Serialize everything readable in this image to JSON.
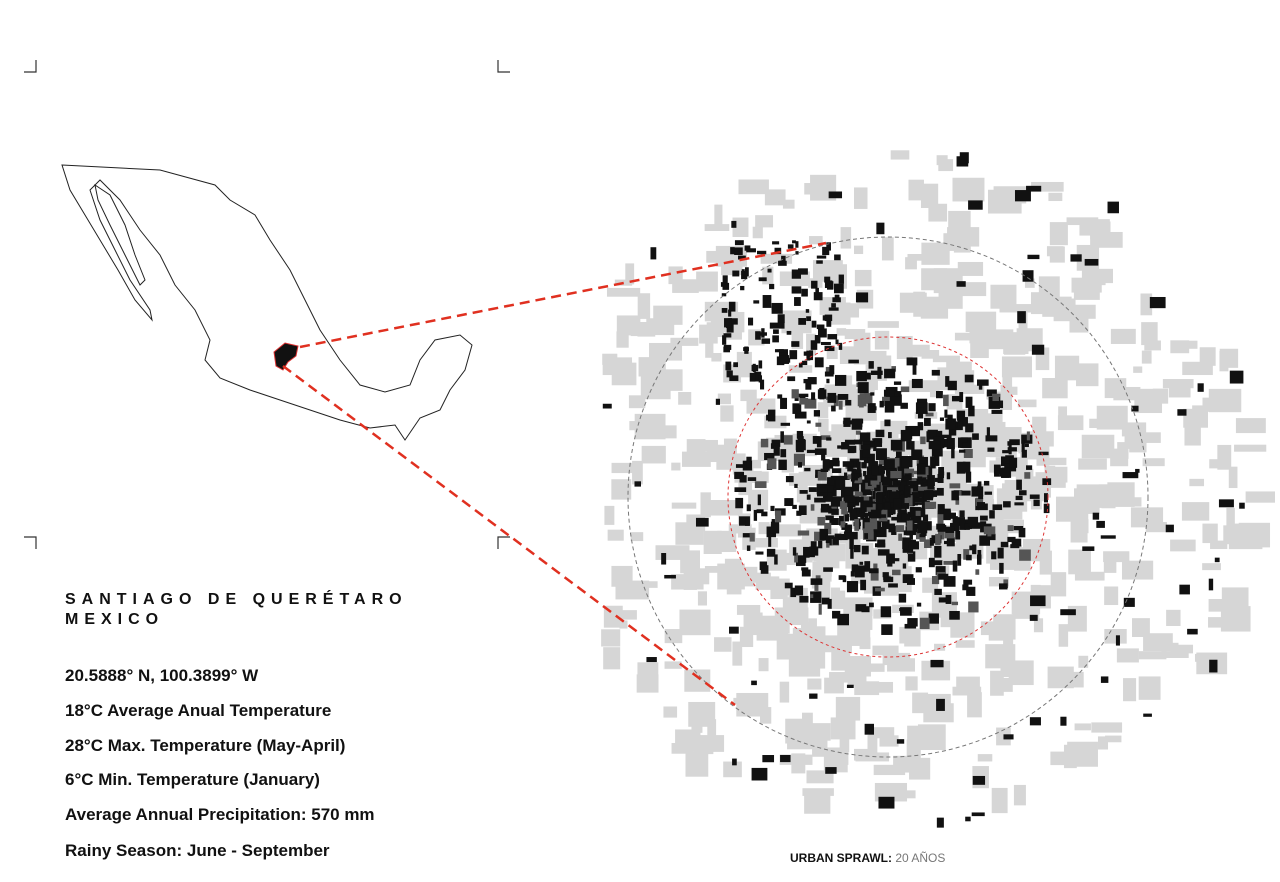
{
  "title": {
    "line1": "SANTIAGO DE QUERÉTARO",
    "line2": "MEXICO"
  },
  "facts": [
    "20.5888° N, 100.3899° W",
    "18°C Average Anual Temperature",
    "28°C Max. Temperature (May-April)",
    "6°C Min. Temperature (January)",
    "Average Annual Precipitation: 570 mm",
    "Rainy Season: June - September"
  ],
  "caption": {
    "label": "URBAN SPRAWL:",
    "value": "20 AÑOS"
  }
}
